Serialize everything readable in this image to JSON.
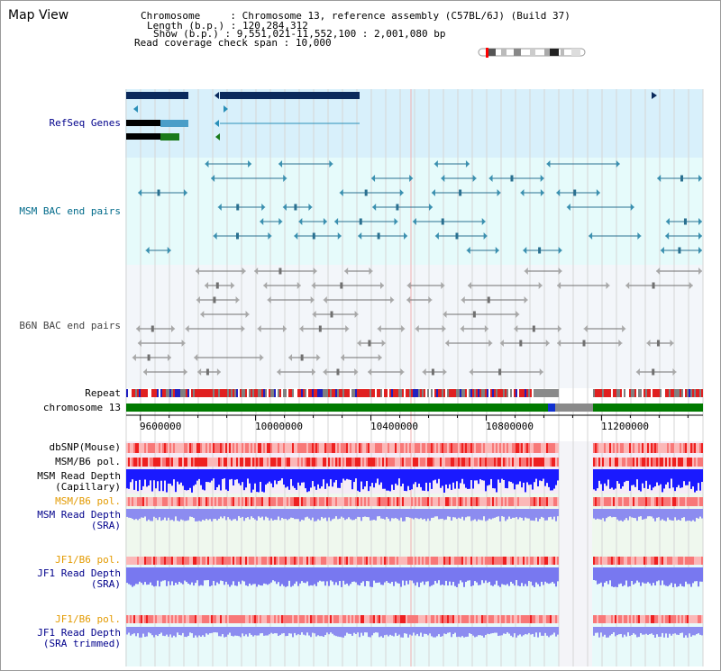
{
  "title": "Map View",
  "info": {
    "chromosome_label": "Chromosome",
    "chromosome_value": "Chromosome 13, reference assembly (C57BL/6J) (Build 37)",
    "length_label": "Length (b.p.)",
    "length_value": "120,284,312",
    "show_label": "Show (b.p.)",
    "show_value": "9,551,021-11,552,100 : 2,001,080 bp",
    "coverage_label": "Read coverage check span",
    "coverage_value": "10,000"
  },
  "tracks": {
    "refseq": "RefSeq Genes",
    "msm_bac": "MSM BAC end pairs",
    "b6n_bac": "B6N BAC end pairs",
    "repeat": "Repeat",
    "chromosome": "chromosome 13",
    "dbsnp": "dbSNP(Mouse)",
    "msm_pol": "MSM/B6 pol.",
    "msm_depth_cap_1": "MSM Read Depth",
    "msm_depth_cap_2": "(Capillary)",
    "msm_pol_sra": "MSM/B6 pol.",
    "msm_depth_sra_1": "MSM Read Depth",
    "msm_depth_sra_2": "(SRA)",
    "jf1_pol": "JF1/B6 pol.",
    "jf1_depth_1": "JF1 Read Depth",
    "jf1_depth_2": "(SRA)",
    "jf1_pol_trim": "JF1/B6 pol.",
    "jf1_trim_1": "JF1 Read Depth",
    "jf1_trim_2": "(SRA trimmed)"
  },
  "axis": {
    "range": [
      9551021,
      11552100
    ],
    "ticks": [
      "9600000",
      "10000000",
      "10400000",
      "10800000",
      "11200000"
    ]
  },
  "colors": {
    "refseq_bg": "#d8f0fb",
    "msm_bg": "#e6fbfb",
    "b6n_bg": "#f3f6fa",
    "chrom_green": "#007a00",
    "depth_blue": "#1a1aff",
    "depth_light": "#8c8cf0",
    "pol_red": "#ff3030"
  }
}
